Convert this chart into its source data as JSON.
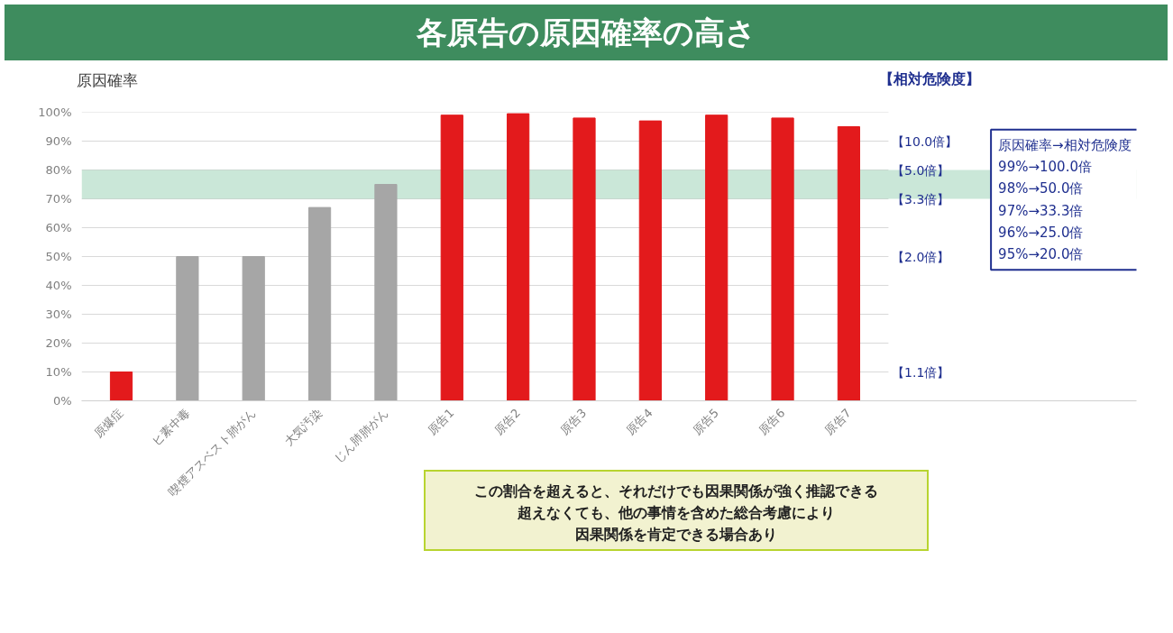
{
  "chart_data": {
    "type": "bar",
    "title": "各原告の原因確率の高さ",
    "ylabel": "原因確率",
    "y2label": "【相対危険度】",
    "categories": [
      "原爆症",
      "ヒ素中毒",
      "喫煙アスベスト肺がん",
      "大気汚染",
      "じん肺肺がん",
      "原告1",
      "原告2",
      "原告3",
      "原告4",
      "原告5",
      "原告6",
      "原告7"
    ],
    "values": [
      10,
      50,
      50,
      67,
      75,
      99,
      99.5,
      98,
      97,
      99,
      98,
      95
    ],
    "colors": [
      "#e31a1c",
      "#a6a6a6",
      "#a6a6a6",
      "#a6a6a6",
      "#a6a6a6",
      "#e31a1c",
      "#e31a1c",
      "#e31a1c",
      "#e31a1c",
      "#e31a1c",
      "#e31a1c",
      "#e31a1c"
    ],
    "ylim": [
      0,
      100
    ],
    "yticks": [
      {
        "value": 0,
        "label": "0%"
      },
      {
        "value": 10,
        "label": "10%"
      },
      {
        "value": 20,
        "label": "20%"
      },
      {
        "value": 30,
        "label": "30%"
      },
      {
        "value": 40,
        "label": "40%"
      },
      {
        "value": 50,
        "label": "50%"
      },
      {
        "value": 60,
        "label": "60%"
      },
      {
        "value": 70,
        "label": "70%"
      },
      {
        "value": 80,
        "label": "80%"
      },
      {
        "value": 90,
        "label": "90%"
      },
      {
        "value": 100,
        "label": "100%"
      }
    ],
    "grid": "y",
    "bands": [
      {
        "axis": "y",
        "from": 70,
        "to": 80,
        "color": "#9fd3b8"
      }
    ],
    "annotations": [
      "【10.0倍】",
      "【5.0倍】",
      "【3.3倍】",
      "【2.0倍】",
      "【1.1倍】",
      "原因確率→相対危険度\n99%→100.0倍\n98%→50.0倍\n97%→33.3倍\n96%→25.0倍\n95%→20.0倍",
      "この割合を超えると、それだけでも因果関係が強く推認できる",
      "超えなくても、他の事情を含めた総合考慮により",
      "因果関係を肯定できる場合あり"
    ]
  }
}
